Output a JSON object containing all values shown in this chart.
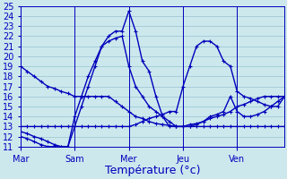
{
  "xlabel": "Température (°c)",
  "background_color": "#cce8ed",
  "grid_color": "#9fc8d4",
  "line_color": "#0000bb",
  "ylim": [
    11,
    25
  ],
  "yticks": [
    11,
    12,
    13,
    14,
    15,
    16,
    17,
    18,
    19,
    20,
    21,
    22,
    23,
    24,
    25
  ],
  "x_day_labels": [
    "Mar",
    "Sam",
    "Mer",
    "Jeu",
    "Ven"
  ],
  "x_day_positions": [
    0,
    8,
    16,
    24,
    32
  ],
  "n_points": 40,
  "lines": [
    [
      19,
      18.5,
      18,
      17.5,
      17,
      16.8,
      16.5,
      16.3,
      16,
      16,
      16,
      16,
      16,
      16,
      15.5,
      15,
      14.5,
      14,
      13.8,
      13.5,
      13.3,
      13.2,
      13.1,
      13,
      13,
      13.2,
      13.3,
      13.5,
      13.8,
      14,
      14.2,
      14.5,
      15,
      15.2,
      15.5,
      15.8,
      16,
      16,
      16,
      16
    ],
    [
      12.5,
      12.3,
      12,
      11.8,
      11.5,
      11.2,
      11,
      11,
      14,
      16,
      18,
      19.5,
      21,
      21.5,
      21.8,
      22,
      19,
      17,
      16,
      15,
      14.5,
      14,
      13.5,
      13,
      13,
      13,
      13,
      13,
      13,
      13,
      13,
      13,
      13,
      13,
      13,
      13,
      13,
      13,
      13,
      13
    ],
    [
      12,
      11.8,
      11.5,
      11.2,
      11,
      11,
      11,
      11,
      13,
      15,
      17,
      19,
      21,
      22,
      22.5,
      22.5,
      24.5,
      22.5,
      19.5,
      18.5,
      16,
      14,
      13,
      13,
      13,
      13,
      13.2,
      13.5,
      14,
      14.2,
      14.5,
      16,
      14.5,
      14,
      14,
      14.2,
      14.5,
      15,
      15.5,
      16
    ],
    [
      13,
      13,
      13,
      13,
      13,
      13,
      13,
      13,
      13,
      13,
      13,
      13,
      13,
      13,
      13,
      13,
      13,
      13.2,
      13.5,
      13.8,
      14,
      14.2,
      14.5,
      14.5,
      17,
      19,
      21,
      21.5,
      21.5,
      21,
      19.5,
      19,
      16.5,
      16,
      15.8,
      15.5,
      15.2,
      15,
      15,
      16
    ]
  ],
  "xlabel_fontsize": 9,
  "tick_fontsize": 7,
  "marker_size": 3,
  "linewidth": 1.0
}
